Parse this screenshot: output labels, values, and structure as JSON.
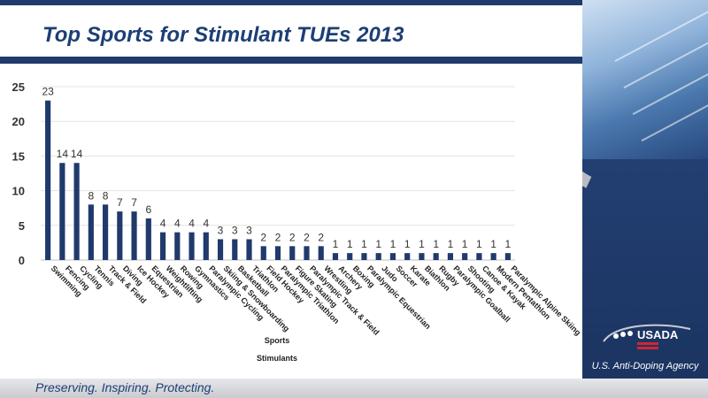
{
  "header": {
    "title": "Top Sports for Stimulant TUEs 2013"
  },
  "footer": {
    "tagline": "Preserving. Inspiring. Protecting."
  },
  "brand": {
    "logo_text": "USADA",
    "agency": "U.S. Anti-Doping Agency",
    "accent": "#1f3a6b",
    "bar_color": "#1f3a6b"
  },
  "chart_data": {
    "type": "bar",
    "title": "",
    "xlabel": "Sports",
    "series_label": "Stimulants",
    "ylabel": "",
    "ylim": [
      0,
      25
    ],
    "yticks": [
      0,
      5,
      10,
      15,
      20,
      25
    ],
    "grid": true,
    "categories": [
      "Swimming",
      "Fencing",
      "Cycling",
      "Tennis",
      "Track & Field",
      "Diving",
      "Ice Hockey",
      "Equestrian",
      "Weightlifting",
      "Rowing",
      "Gymnastics",
      "Paralympic Cycling",
      "Skiing & Snowboarding",
      "Basketball",
      "Triathlon",
      "Field Hockey",
      "Paralympic Triathlon",
      "Figure Skating",
      "Paralympic Track & Field",
      "Wrestling",
      "Archery",
      "Boxing",
      "Paralympic Equestrian",
      "Judo",
      "Soccer",
      "Karate",
      "Biathlon",
      "Rugby",
      "Paralympic Goalball",
      "Shooting",
      "Canoe & Kayak",
      "Modern Pentathlon",
      "Paralympic Alpine Skiing"
    ],
    "values": [
      23,
      14,
      14,
      8,
      8,
      7,
      7,
      6,
      4,
      4,
      4,
      4,
      3,
      3,
      3,
      2,
      2,
      2,
      2,
      2,
      1,
      1,
      1,
      1,
      1,
      1,
      1,
      1,
      1,
      1,
      1,
      1,
      1
    ]
  }
}
